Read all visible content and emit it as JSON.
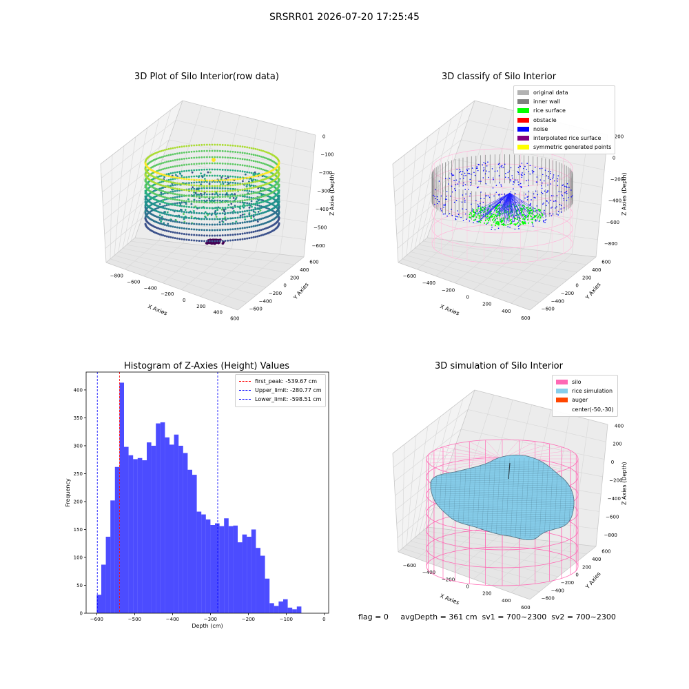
{
  "header": {
    "title": "SRSRR01 2026-07-20 17:25:45"
  },
  "chart_data": [
    {
      "type": "scatter",
      "subtype": "3d",
      "title": "3D Plot of Silo Interior(row data)",
      "xlabel": "X Axies",
      "ylabel": "Y Axies",
      "zlabel": "Z Axies (Depth)",
      "x_ticks": [
        "−800",
        "−600",
        "−400",
        "−200",
        "0",
        "200",
        "400",
        "600"
      ],
      "y_ticks": [
        "−600",
        "−400",
        "−200",
        "0",
        "200",
        "400",
        "600"
      ],
      "z_ticks": [
        "0",
        "−100",
        "−200",
        "−300",
        "−400",
        "−500",
        "−600"
      ],
      "colormap": "viridis"
    },
    {
      "type": "scatter",
      "subtype": "3d",
      "title": "3D classify of Silo Interior",
      "xlabel": "X Axies",
      "ylabel": "Y Axies",
      "zlabel": "Z Axies (Depth)",
      "x_ticks": [
        "−600",
        "−400",
        "−200",
        "0",
        "200",
        "400",
        "600"
      ],
      "y_ticks": [
        "−600",
        "−400",
        "−200",
        "0",
        "200",
        "400",
        "600"
      ],
      "z_ticks": [
        "200",
        "0",
        "−200",
        "−400",
        "−600",
        "−800"
      ],
      "legend": [
        {
          "label": "original data",
          "color": "#b3b3b3"
        },
        {
          "label": "inner wall",
          "color": "#808080"
        },
        {
          "label": "rice surface",
          "color": "#00ff00"
        },
        {
          "label": "obstacle",
          "color": "#ff0000"
        },
        {
          "label": "noise",
          "color": "#0000ff"
        },
        {
          "label": "interpolated rice surface",
          "color": "#800080"
        },
        {
          "label": "symmetric generated points",
          "color": "#ffff00"
        }
      ]
    },
    {
      "type": "bar",
      "subtype": "histogram",
      "title": "Histogram of Z-Axies (Height) Values",
      "xlabel": "Depth (cm)",
      "ylabel": "Frequency",
      "xlim": [
        -628,
        12
      ],
      "ylim": [
        0,
        432
      ],
      "x_ticks": [
        -600,
        -500,
        -400,
        -300,
        -200,
        -100,
        0
      ],
      "y_ticks": [
        0,
        50,
        100,
        150,
        200,
        250,
        300,
        350,
        400
      ],
      "bin_start": -600,
      "bin_width": 12,
      "values": [
        33,
        87,
        137,
        202,
        262,
        413,
        298,
        283,
        276,
        278,
        274,
        306,
        300,
        340,
        342,
        315,
        302,
        320,
        300,
        287,
        257,
        248,
        182,
        177,
        168,
        158,
        161,
        156,
        170,
        156,
        157,
        127,
        141,
        137,
        150,
        117,
        103,
        62,
        18,
        13,
        21,
        25,
        10,
        7,
        12
      ],
      "color": "#0000ff",
      "vlines": [
        {
          "label": "first_peak: -539.67 cm",
          "x": -539.67,
          "color": "#ff0000"
        },
        {
          "label": "Upper_limit: -280.77 cm",
          "x": -280.77,
          "color": "#0000ff"
        },
        {
          "label": "Lower_limit: -598.51 cm",
          "x": -598.51,
          "color": "#0000ff"
        }
      ]
    },
    {
      "type": "area",
      "subtype": "3d-surface",
      "title": "3D simulation of Silo Interior",
      "xlabel": "X Axies",
      "ylabel": "Y Axies",
      "zlabel": "Z Axies (Depth)",
      "x_ticks": [
        "−600",
        "−400",
        "−200",
        "0",
        "200",
        "400",
        "600"
      ],
      "y_ticks": [
        "−600",
        "−400",
        "−200",
        "0",
        "200",
        "400",
        "600"
      ],
      "z_ticks": [
        "400",
        "200",
        "0",
        "−200",
        "−400",
        "−600",
        "−800"
      ],
      "legend": [
        {
          "label": "silo",
          "color": "#ff69b4"
        },
        {
          "label": "rice simulation",
          "color": "#87ceeb"
        },
        {
          "label": "auger",
          "color": "#ff4500"
        },
        {
          "label": "center(-50,-30)",
          "color": ""
        }
      ]
    }
  ],
  "footer": {
    "text": "flag = 0     avgDepth = 361 cm  sv1 = 700~2300  sv2 = 700~2300"
  }
}
